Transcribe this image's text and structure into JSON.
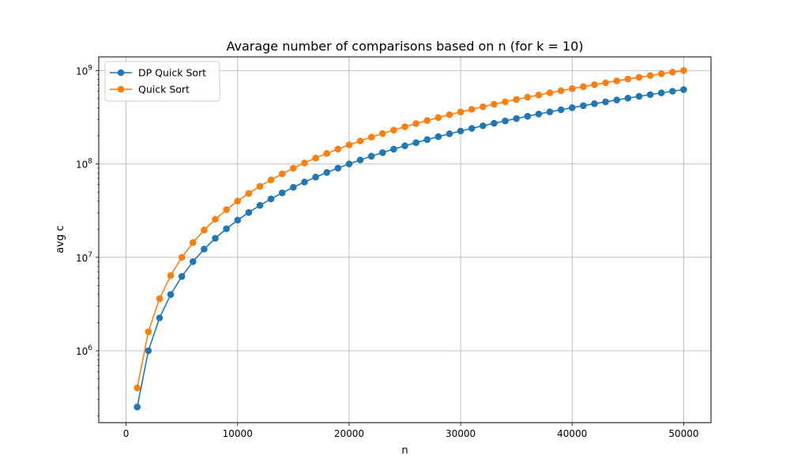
{
  "chart_data": {
    "type": "line",
    "title": "Avarage number of comparisons based on n (for k = 10)",
    "xlabel": "n",
    "ylabel": "avg c",
    "x_scale": "linear",
    "y_scale": "log",
    "xlim": [
      -2450,
      52450
    ],
    "ylim": [
      170000,
      1400000000
    ],
    "x_ticks": [
      0,
      10000,
      20000,
      30000,
      40000,
      50000
    ],
    "x_tick_labels": [
      "0",
      "10000",
      "20000",
      "30000",
      "40000",
      "50000"
    ],
    "y_ticks": [
      1000000,
      10000000,
      100000000,
      1000000000
    ],
    "y_tick_labels": [
      {
        "base": "10",
        "exp": "6"
      },
      {
        "base": "10",
        "exp": "7"
      },
      {
        "base": "10",
        "exp": "8"
      },
      {
        "base": "10",
        "exp": "9"
      }
    ],
    "grid": true,
    "legend_position": "top-left",
    "x": [
      1000,
      2000,
      3000,
      4000,
      5000,
      6000,
      7000,
      8000,
      9000,
      10000,
      11000,
      12000,
      13000,
      14000,
      15000,
      16000,
      17000,
      18000,
      19000,
      20000,
      21000,
      22000,
      23000,
      24000,
      25000,
      26000,
      27000,
      28000,
      29000,
      30000,
      31000,
      32000,
      33000,
      34000,
      35000,
      36000,
      37000,
      38000,
      39000,
      40000,
      41000,
      42000,
      43000,
      44000,
      45000,
      46000,
      47000,
      48000,
      49000,
      50000
    ],
    "series": [
      {
        "name": "DP Quick Sort",
        "color": "#1f77b4",
        "values": [
          250000,
          1000000,
          2250000,
          4000000,
          6250000,
          9000000,
          12250000,
          16000000,
          20250000,
          25000000,
          30250000,
          36000000,
          42250000,
          49000000,
          56250000,
          64000000,
          72250000,
          81000000,
          90250000,
          100000000,
          110250000,
          121000000,
          132250000,
          144000000,
          156250000,
          169000000,
          182250000,
          196000000,
          210250000,
          225000000,
          240250000,
          256000000,
          272250000,
          289000000,
          306250000,
          324000000,
          342250000,
          361000000,
          380250000,
          400000000,
          420250000,
          441000000,
          462250000,
          484000000,
          506250000,
          529000000,
          552250000,
          576000000,
          600250000,
          625000000
        ]
      },
      {
        "name": "Quick Sort",
        "color": "#ff7f0e",
        "values": [
          400000,
          1600000,
          3600000,
          6400000,
          10000000,
          14400000,
          19600000,
          25600000,
          32400000,
          40000000,
          48400000,
          57600000,
          67600000,
          78400000,
          90000000,
          102400000,
          115600000,
          129600000,
          144400000,
          160000000,
          176400000,
          193600000,
          211600000,
          230400000,
          250000000,
          270400000,
          291600000,
          313600000,
          336400000,
          360000000,
          384400000,
          409600000,
          435600000,
          462400000,
          490000000,
          518400000,
          547600000,
          577600000,
          608400000,
          640000000,
          672400000,
          705600000,
          739600000,
          774400000,
          810000000,
          846400000,
          883600000,
          921600000,
          960400000,
          1000000000
        ]
      }
    ]
  }
}
